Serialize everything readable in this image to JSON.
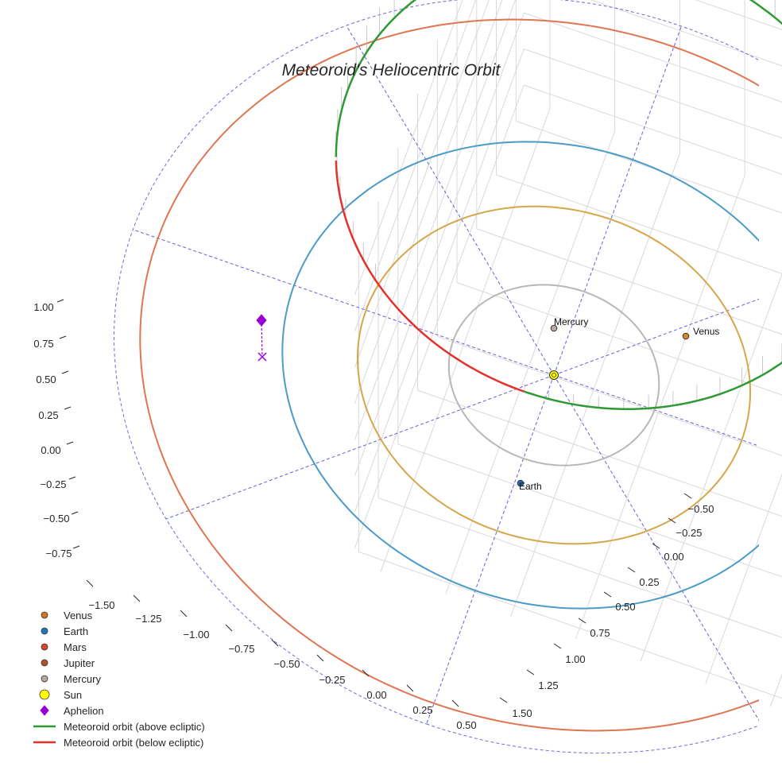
{
  "chart_data": {
    "type": "scatter3d",
    "title": "Meteoroid's Heliocentric Orbit",
    "x_ticks": [
      "−1.50",
      "−1.25",
      "−1.00",
      "−0.75",
      "−0.50",
      "−0.25",
      "0.00",
      "0.25",
      "0.50"
    ],
    "y_ticks": [
      "−0.50",
      "−0.25",
      "0.00",
      "0.25",
      "0.50",
      "0.75",
      "1.00",
      "1.25",
      "1.50"
    ],
    "z_ticks": [
      "1.00",
      "0.75",
      "0.50",
      "0.25",
      "0.00",
      "−0.25",
      "−0.50",
      "−0.75"
    ],
    "xlim": [
      -1.6,
      0.55
    ],
    "ylim": [
      -0.6,
      1.6
    ],
    "zlim": [
      -0.85,
      1.2
    ],
    "orbits": [
      {
        "name": "Mercury orbit",
        "a": 0.387,
        "color": "#bcb7b4"
      },
      {
        "name": "Venus orbit",
        "a": 0.723,
        "color": "#d6a64a"
      },
      {
        "name": "Earth orbit",
        "a": 1.0,
        "color": "#4b9bc8"
      },
      {
        "name": "Mars orbit",
        "a": 1.524,
        "color": "#df7653"
      }
    ],
    "planets": [
      {
        "name": "Mercury",
        "color": "#b3aaa6",
        "label": "Mercury"
      },
      {
        "name": "Venus",
        "color": "#d28a2a",
        "label": "Venus"
      },
      {
        "name": "Earth",
        "color": "#1f6fc0",
        "label": "Earth"
      },
      {
        "name": "Sun",
        "color": "#ffff00"
      }
    ],
    "meteoroid": {
      "above_color": "#2e9a35",
      "below_color": "#e5312c",
      "aphelion_color": "#9a00d6"
    },
    "reference_grid_color": "#6a6ade",
    "legend": [
      {
        "label": "Venus",
        "marker": "dot",
        "color": "#d4761f"
      },
      {
        "label": "Earth",
        "marker": "dot",
        "color": "#1f77b4"
      },
      {
        "label": "Mars",
        "marker": "dot",
        "color": "#d9482a"
      },
      {
        "label": "Jupiter",
        "marker": "dot",
        "color": "#b0532b"
      },
      {
        "label": "Mercury",
        "marker": "dot",
        "color": "#b7a7a0"
      },
      {
        "label": "Sun",
        "marker": "bigdot",
        "color": "#ffff00"
      },
      {
        "label": "Aphelion",
        "marker": "diamond",
        "color": "#9a00d6"
      },
      {
        "label": "Meteoroid orbit (above ecliptic)",
        "marker": "line",
        "color": "#2e9a35"
      },
      {
        "label": "Meteoroid orbit (below ecliptic)",
        "marker": "line",
        "color": "#e5312c"
      }
    ]
  }
}
